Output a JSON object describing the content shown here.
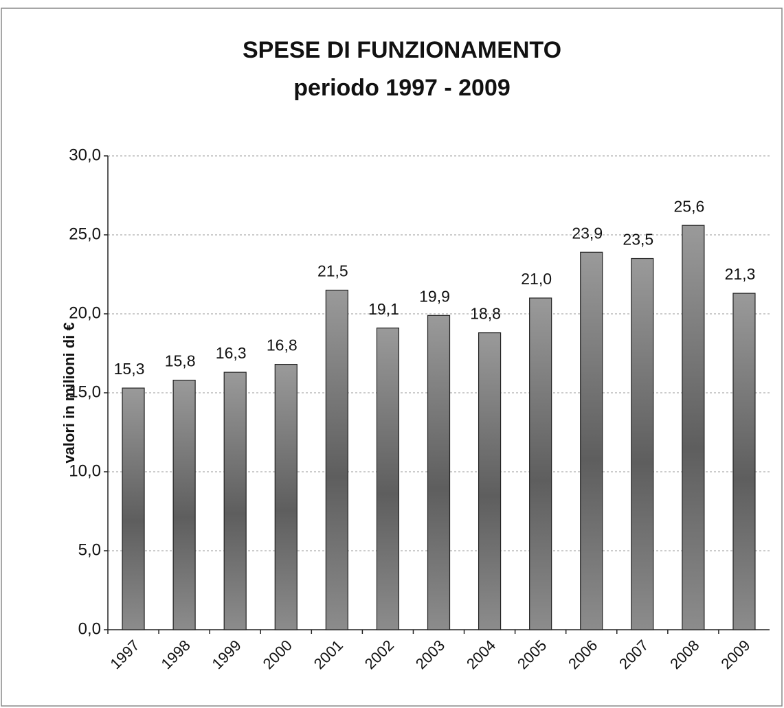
{
  "chart_data": {
    "type": "bar",
    "title": "SPESE DI FUNZIONAMENTO",
    "subtitle": "periodo 1997 - 2009",
    "y_label": "valori in milioni di €",
    "categories": [
      "1997",
      "1998",
      "1999",
      "2000",
      "2001",
      "2002",
      "2003",
      "2004",
      "2005",
      "2006",
      "2007",
      "2008",
      "2009"
    ],
    "values": [
      15.3,
      15.8,
      16.3,
      16.8,
      21.5,
      19.1,
      19.9,
      18.8,
      21.0,
      23.9,
      23.5,
      25.6,
      21.3
    ],
    "value_labels": [
      "15,3",
      "15,8",
      "16,3",
      "16,8",
      "21,5",
      "19,1",
      "19,9",
      "18,8",
      "21,0",
      "23,9",
      "23,5",
      "25,6",
      "21,3"
    ],
    "color": "#7a7a7a",
    "ylim": [
      0,
      30
    ],
    "yticks": [
      {
        "value": 0,
        "label": "0,0"
      },
      {
        "value": 5,
        "label": "5,0"
      },
      {
        "value": 10,
        "label": "10,0"
      },
      {
        "value": 15,
        "label": "15,0"
      },
      {
        "value": 20,
        "label": "20,0"
      },
      {
        "value": 25,
        "label": "25,0"
      },
      {
        "value": 30,
        "label": "30,0"
      }
    ],
    "grid": true
  }
}
